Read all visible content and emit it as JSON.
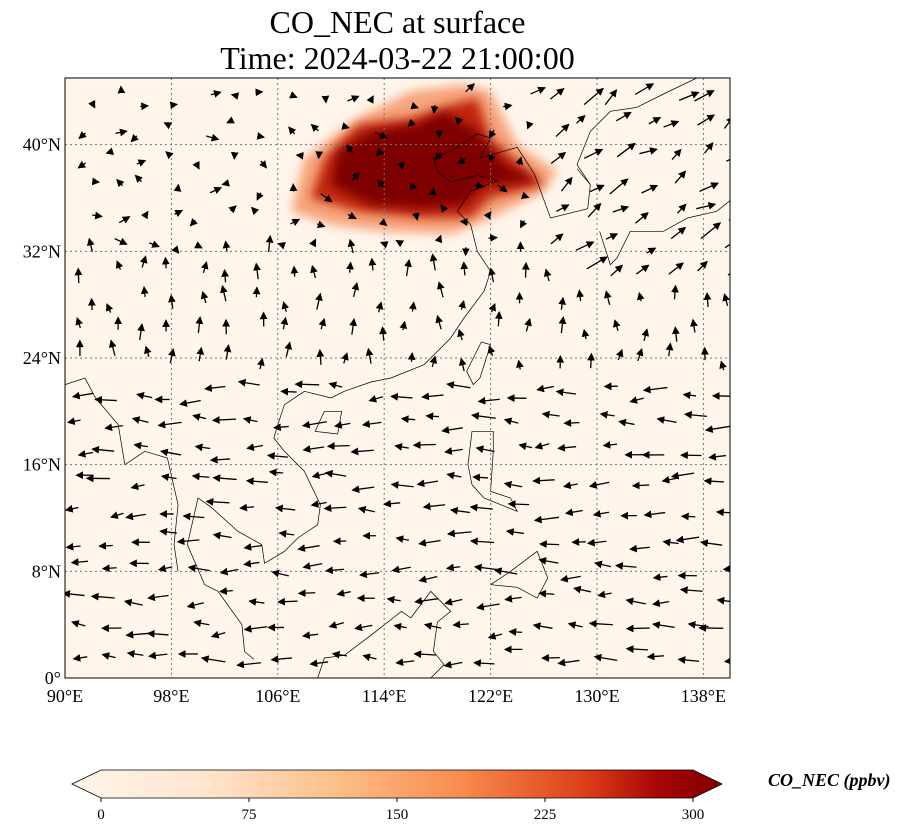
{
  "title_line1": "CO_NEC at surface",
  "title_line2": "Time: 2024-03-22 21:00:00",
  "chart_data": {
    "type": "heatmap",
    "variable": "CO_NEC",
    "units": "ppbv",
    "colorbar_label": "CO_NEC (ppbv)",
    "colorbar_ticks": [
      "0",
      "75",
      "150",
      "225",
      "300"
    ],
    "colorbar_range": [
      0,
      300
    ],
    "colormap": [
      "#fff5eb",
      "#fdd9b4",
      "#fda762",
      "#f3701b",
      "#c54102",
      "#7f0000"
    ],
    "extent": {
      "lon": [
        90,
        140
      ],
      "lat": [
        0,
        45
      ]
    },
    "lon_ticks": [
      {
        "v": 90,
        "label": "90°E"
      },
      {
        "v": 98,
        "label": "98°E"
      },
      {
        "v": 106,
        "label": "106°E"
      },
      {
        "v": 114,
        "label": "114°E"
      },
      {
        "v": 122,
        "label": "122°E"
      },
      {
        "v": 130,
        "label": "130°E"
      },
      {
        "v": 138,
        "label": "138°E"
      }
    ],
    "lat_ticks": [
      {
        "v": 0,
        "label": "0°"
      },
      {
        "v": 8,
        "label": "8°N"
      },
      {
        "v": 16,
        "label": "16°N"
      },
      {
        "v": 24,
        "label": "24°N"
      },
      {
        "v": 32,
        "label": "32°N"
      },
      {
        "v": 40,
        "label": "40°N"
      }
    ],
    "plume_regions": [
      {
        "value": 100,
        "poly": [
          [
            107,
            35
          ],
          [
            110,
            34
          ],
          [
            114,
            33.5
          ],
          [
            119,
            33.3
          ],
          [
            122,
            34.5
          ],
          [
            126,
            36.5
          ],
          [
            127,
            38
          ],
          [
            124,
            40
          ],
          [
            122,
            44
          ],
          [
            120,
            44.5
          ],
          [
            116,
            44
          ],
          [
            112,
            42
          ],
          [
            108,
            39
          ]
        ]
      },
      {
        "value": 200,
        "poly": [
          [
            108.5,
            36
          ],
          [
            112,
            35
          ],
          [
            117,
            34.5
          ],
          [
            120.5,
            34.5
          ],
          [
            122,
            36
          ],
          [
            126,
            37
          ],
          [
            125,
            38
          ],
          [
            122,
            40.5
          ],
          [
            121,
            43.5
          ],
          [
            119,
            43
          ],
          [
            116,
            42
          ],
          [
            112,
            41.5
          ],
          [
            109.5,
            39
          ]
        ]
      },
      {
        "value": 300,
        "poly": [
          [
            110,
            37
          ],
          [
            113,
            35.5
          ],
          [
            117,
            35.2
          ],
          [
            120,
            35.5
          ],
          [
            121.5,
            37
          ],
          [
            125.5,
            37.3
          ],
          [
            123,
            38.5
          ],
          [
            121,
            41
          ],
          [
            118.5,
            42.5
          ],
          [
            116.5,
            41.5
          ],
          [
            113,
            41
          ],
          [
            110.5,
            39.5
          ]
        ]
      }
    ],
    "coastline": [
      [
        [
          108,
          21.5
        ],
        [
          110,
          21
        ],
        [
          111,
          21.5
        ],
        [
          113,
          22.2
        ],
        [
          114.5,
          22.5
        ],
        [
          117,
          23.5
        ],
        [
          119,
          25.5
        ],
        [
          120,
          27
        ],
        [
          121.5,
          29
        ],
        [
          122,
          30.5
        ],
        [
          121,
          32
        ],
        [
          120.5,
          34
        ],
        [
          119.5,
          35
        ],
        [
          120.5,
          36.5
        ],
        [
          122.5,
          37.3
        ],
        [
          121,
          37.7
        ],
        [
          119,
          37.2
        ],
        [
          118,
          38
        ],
        [
          117.7,
          39
        ],
        [
          119,
          39.5
        ],
        [
          121,
          40.8
        ],
        [
          122,
          40.5
        ],
        [
          121.2,
          39
        ],
        [
          124,
          39.8
        ],
        [
          125.3,
          37.8
        ],
        [
          126.5,
          34.5
        ],
        [
          129.3,
          35.2
        ],
        [
          129.5,
          37
        ],
        [
          128.5,
          38.5
        ],
        [
          129.5,
          41
        ],
        [
          131,
          42.5
        ],
        [
          133,
          42.8
        ],
        [
          135,
          43.8
        ],
        [
          137.5,
          45
        ]
      ],
      [
        [
          108,
          21.5
        ],
        [
          106.5,
          20.5
        ],
        [
          106,
          19
        ],
        [
          105.7,
          18
        ],
        [
          106.5,
          17
        ],
        [
          108,
          15.5
        ],
        [
          109.2,
          13
        ],
        [
          109,
          11.5
        ],
        [
          107.5,
          10.5
        ],
        [
          106.5,
          9.5
        ],
        [
          105,
          8.6
        ],
        [
          104.8,
          10
        ],
        [
          103,
          11
        ],
        [
          101,
          12.8
        ],
        [
          100,
          13.5
        ],
        [
          99.2,
          10
        ],
        [
          100.5,
          7
        ],
        [
          101.5,
          6.5
        ],
        [
          103.3,
          4
        ],
        [
          103.5,
          2
        ],
        [
          104.2,
          1.4
        ]
      ],
      [
        [
          98.5,
          8
        ],
        [
          98.2,
          10
        ],
        [
          98.5,
          13
        ],
        [
          97.7,
          16.5
        ],
        [
          96,
          17
        ],
        [
          94.5,
          16
        ],
        [
          94,
          19
        ],
        [
          92.3,
          21
        ],
        [
          91.5,
          22.5
        ],
        [
          90,
          22
        ]
      ],
      [
        [
          120.7,
          22
        ],
        [
          120.2,
          23
        ],
        [
          121.3,
          25.2
        ],
        [
          122,
          25
        ],
        [
          121.2,
          22.5
        ],
        [
          120.7,
          22
        ]
      ],
      [
        [
          110.5,
          18.3
        ],
        [
          108.8,
          18.5
        ],
        [
          109.5,
          20
        ],
        [
          110.8,
          20
        ],
        [
          110.5,
          18.3
        ]
      ],
      [
        [
          120.6,
          18.5
        ],
        [
          120.3,
          16
        ],
        [
          120.6,
          14.5
        ],
        [
          121.5,
          13.5
        ],
        [
          124,
          12.5
        ],
        [
          123.5,
          13.5
        ],
        [
          122,
          14
        ],
        [
          122.2,
          17
        ],
        [
          122.2,
          18.5
        ],
        [
          120.6,
          18.5
        ]
      ],
      [
        [
          122,
          7
        ],
        [
          123.5,
          8
        ],
        [
          125.5,
          9.5
        ],
        [
          126.3,
          7.5
        ],
        [
          125.5,
          6
        ],
        [
          124,
          6.8
        ],
        [
          122,
          7
        ]
      ],
      [
        [
          116,
          4.5
        ],
        [
          117.5,
          6.5
        ],
        [
          119,
          5
        ],
        [
          118,
          4.2
        ],
        [
          117.7,
          2
        ],
        [
          118.5,
          1
        ],
        [
          117.5,
          0
        ],
        [
          109,
          0
        ],
        [
          109.5,
          1.5
        ],
        [
          111,
          1.7
        ],
        [
          113,
          3.2
        ],
        [
          115.3,
          5
        ],
        [
          116,
          4.5
        ]
      ],
      [
        [
          130.2,
          33.5
        ],
        [
          131,
          31
        ],
        [
          131.5,
          31.5
        ],
        [
          132.5,
          33.5
        ],
        [
          135,
          33.5
        ],
        [
          136.8,
          34.5
        ],
        [
          139,
          35
        ],
        [
          140,
          35.8
        ],
        [
          140,
          38
        ]
      ],
      [
        [
          129.5,
          37
        ],
        [
          128.5,
          38.2
        ]
      ]
    ],
    "wind_vectors": []
  },
  "frame_color": "#000000"
}
